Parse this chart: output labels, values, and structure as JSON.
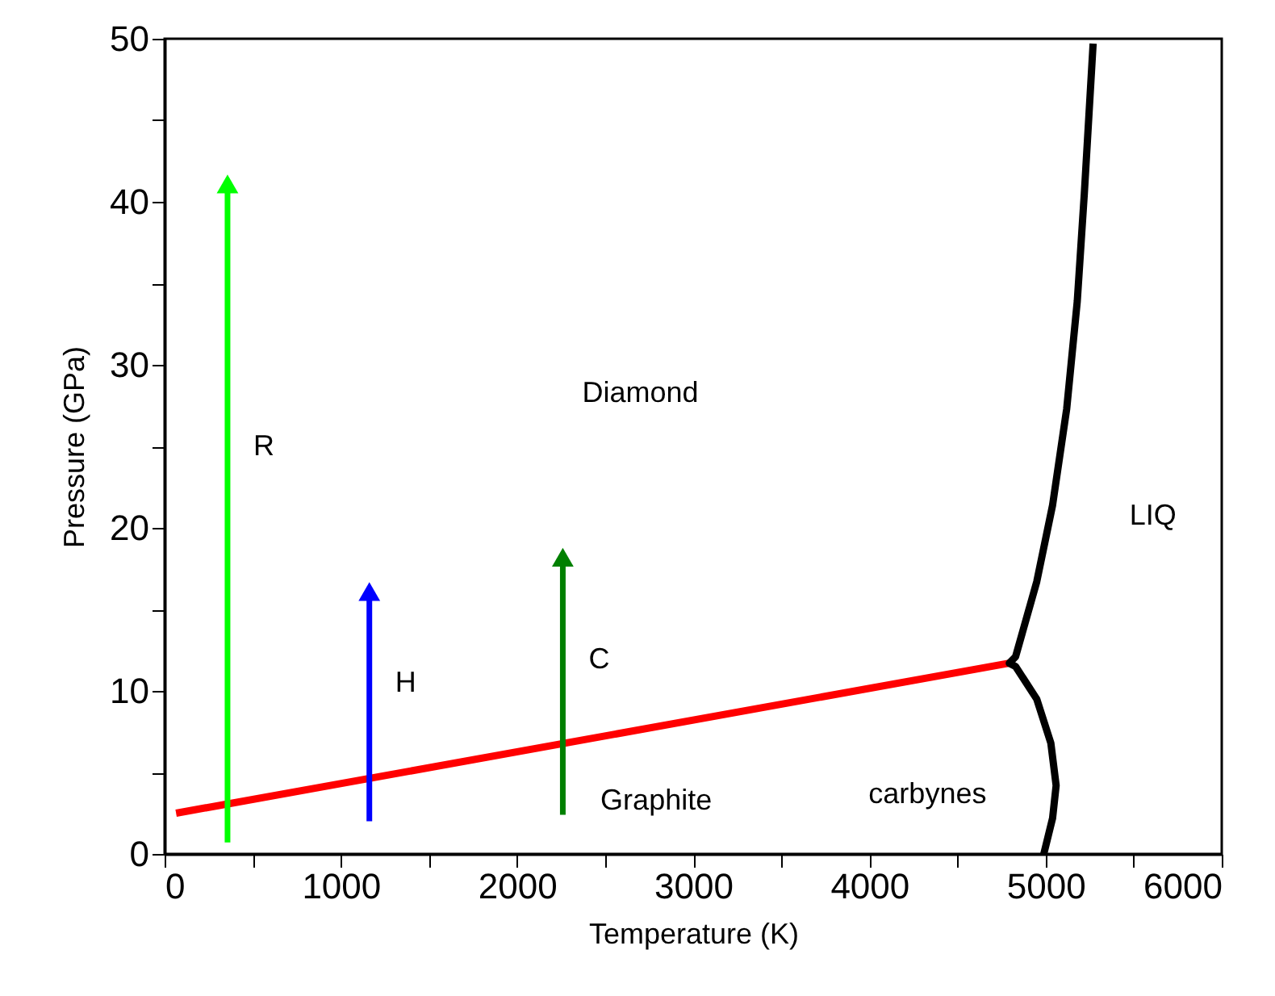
{
  "chart_data": {
    "type": "line",
    "xlabel": "Temperature (K)",
    "ylabel": "Pressure (GPa)",
    "xlim": [
      0,
      6000
    ],
    "ylim": [
      0,
      50
    ],
    "xticks": [
      0,
      {
        "value": 500,
        "label": null
      },
      1000,
      {
        "value": 1500,
        "label": null
      },
      2000,
      {
        "value": 2500,
        "label": null
      },
      3000,
      {
        "value": 3500,
        "label": null
      },
      4000,
      {
        "value": 4500,
        "label": null
      },
      5000,
      {
        "value": 5500,
        "label": null
      },
      6000
    ],
    "yticks": [
      0,
      {
        "value": 5,
        "label": null
      },
      10,
      {
        "value": 15,
        "label": null
      },
      20,
      {
        "value": 25,
        "label": null
      },
      30,
      {
        "value": 35,
        "label": null
      },
      40,
      {
        "value": 45,
        "label": null
      },
      50
    ],
    "grid": false,
    "line_style": "solid",
    "series": [
      {
        "color": "#ff0000",
        "x": [
          65,
          4794
        ],
        "values": [
          2.5,
          11.7
        ]
      },
      {
        "color": "#000000",
        "x": [
          5270,
          5220,
          5180,
          5120,
          5040,
          4950,
          4830,
          4794,
          4830,
          4950,
          5030,
          5060,
          5040,
          4990
        ],
        "values": [
          49.7,
          40.5,
          33.9,
          27.3,
          21.4,
          16.7,
          12.1,
          11.7,
          11.5,
          9.5,
          6.8,
          4.2,
          2.2,
          0
        ]
      },
      {
        "marker": "triangle",
        "name": "R",
        "color": "#00ff00",
        "x": [
          357,
          357
        ],
        "values": [
          0.7,
          41.1
        ]
      },
      {
        "marker": "triangle",
        "name": "H",
        "color": "#0000ff",
        "x": [
          1162,
          1162
        ],
        "values": [
          2.0,
          16.1
        ]
      },
      {
        "marker": "triangle",
        "name": "C",
        "color": "#008000",
        "x": [
          2260,
          2260
        ],
        "values": [
          2.4,
          18.2
        ]
      }
    ],
    "annotations": [
      "Diamond",
      "Graphite",
      "carbynes",
      "LIQ"
    ]
  }
}
